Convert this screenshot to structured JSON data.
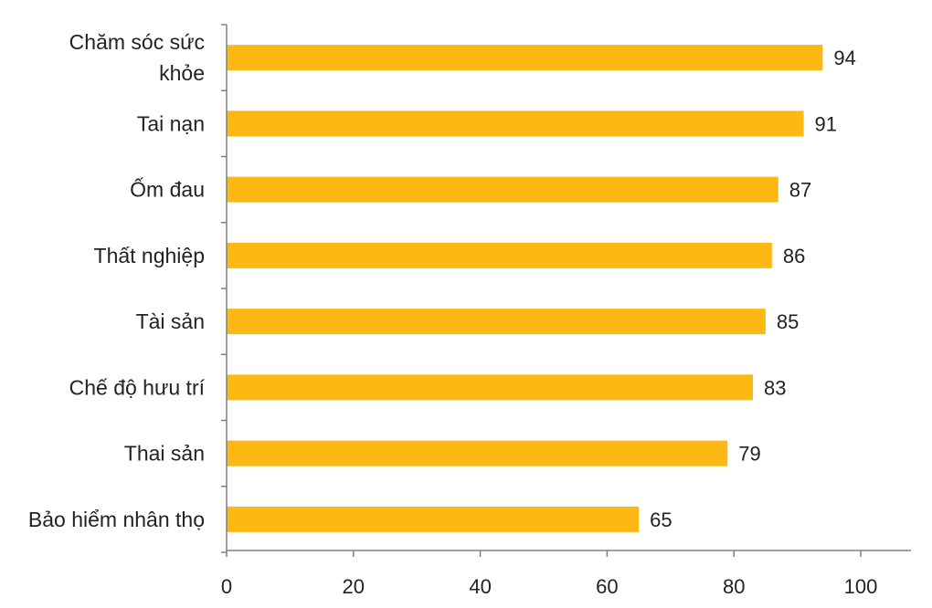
{
  "chart_data": {
    "type": "bar",
    "orientation": "horizontal",
    "categories": [
      [
        "Chăm sóc sức",
        "khỏe"
      ],
      [
        "Tai nạn"
      ],
      [
        "Ốm đau"
      ],
      [
        "Thất nghiệp"
      ],
      [
        "Tài sản"
      ],
      [
        "Chế độ hưu trí"
      ],
      [
        "Thai sản"
      ],
      [
        "Bảo hiểm nhân thọ"
      ]
    ],
    "values": [
      94,
      91,
      87,
      86,
      85,
      83,
      79,
      65
    ],
    "xlim": [
      0,
      100
    ],
    "xticks": [
      0,
      20,
      40,
      60,
      80,
      100
    ],
    "bar_color": "#FDB813",
    "grid": false,
    "legend": "none",
    "data_labels": true
  }
}
